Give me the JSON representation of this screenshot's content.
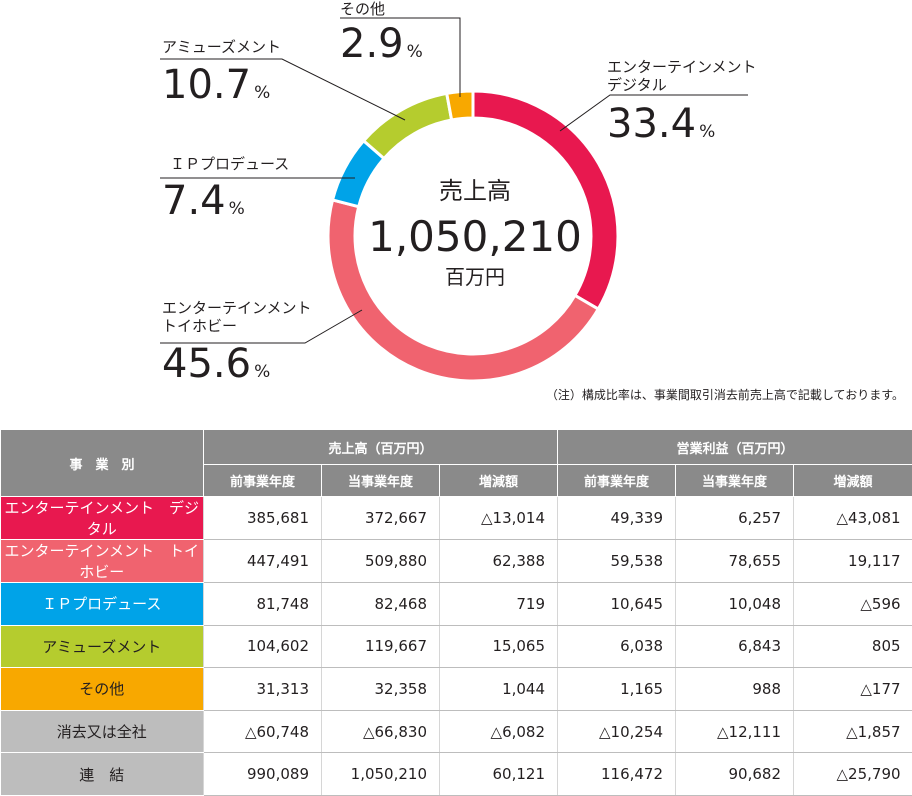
{
  "chart_data": [
    {
      "type": "pie",
      "center": {
        "title": "売上高",
        "value": "1,050,210",
        "unit": "百万円"
      },
      "slices": [
        {
          "label_lines": [
            "エンターテインメント",
            "デジタル"
          ],
          "value": 33.4,
          "value_text": "33.4",
          "unit": "%",
          "color": "#e8184f"
        },
        {
          "label_lines": [
            "エンターテインメント",
            "トイホビー"
          ],
          "value": 45.6,
          "value_text": "45.6",
          "unit": "%",
          "color": "#f0636f"
        },
        {
          "label_lines": [
            "ＩＰプロデュース"
          ],
          "value": 7.4,
          "value_text": "7.4",
          "unit": "%",
          "color": "#00a3e8"
        },
        {
          "label_lines": [
            "アミューズメント"
          ],
          "value": 10.7,
          "value_text": "10.7",
          "unit": "%",
          "color": "#b5cc2e"
        },
        {
          "label_lines": [
            "その他"
          ],
          "value": 2.9,
          "value_text": "2.9",
          "unit": "%",
          "color": "#f8a800"
        }
      ],
      "legend": "none"
    },
    {
      "type": "table",
      "header": {
        "segment": "事　業　別",
        "groups": [
          "売上高（百万円）",
          "営業利益（百万円）"
        ],
        "subcols": [
          "前事業年度",
          "当事業年度",
          "増減額",
          "前事業年度",
          "当事業年度",
          "増減額"
        ]
      },
      "rows": [
        {
          "name": "エンターテインメント　デジタル",
          "bg": "#e8184f",
          "fg": "#ffffff",
          "cells": [
            "385,681",
            "372,667",
            "△13,014",
            "49,339",
            "6,257",
            "△43,081"
          ]
        },
        {
          "name": "エンターテインメント　トイホビー",
          "bg": "#f0636f",
          "fg": "#ffffff",
          "cells": [
            "447,491",
            "509,880",
            "62,388",
            "59,538",
            "78,655",
            "19,117"
          ]
        },
        {
          "name": "ＩＰプロデュース",
          "bg": "#00a3e8",
          "fg": "#ffffff",
          "cells": [
            "81,748",
            "82,468",
            "719",
            "10,645",
            "10,048",
            "△596"
          ]
        },
        {
          "name": "アミューズメント",
          "bg": "#b5cc2e",
          "fg": "#231f20",
          "cells": [
            "104,602",
            "119,667",
            "15,065",
            "6,038",
            "6,843",
            "805"
          ]
        },
        {
          "name": "その他",
          "bg": "#f8a800",
          "fg": "#231f20",
          "cells": [
            "31,313",
            "32,358",
            "1,044",
            "1,165",
            "988",
            "△177"
          ]
        },
        {
          "name": "消去又は全社",
          "bg": "#bdbdbd",
          "fg": "#231f20",
          "cells": [
            "△60,748",
            "△66,830",
            "△6,082",
            "△10,254",
            "△12,111",
            "△1,857"
          ]
        },
        {
          "name": "連　結",
          "bg": "#bdbdbd",
          "fg": "#231f20",
          "cells": [
            "990,089",
            "1,050,210",
            "60,121",
            "116,472",
            "90,682",
            "△25,790"
          ]
        }
      ]
    }
  ],
  "note": "（注）構成比率は、事業間取引消去前売上高で記載しております。"
}
